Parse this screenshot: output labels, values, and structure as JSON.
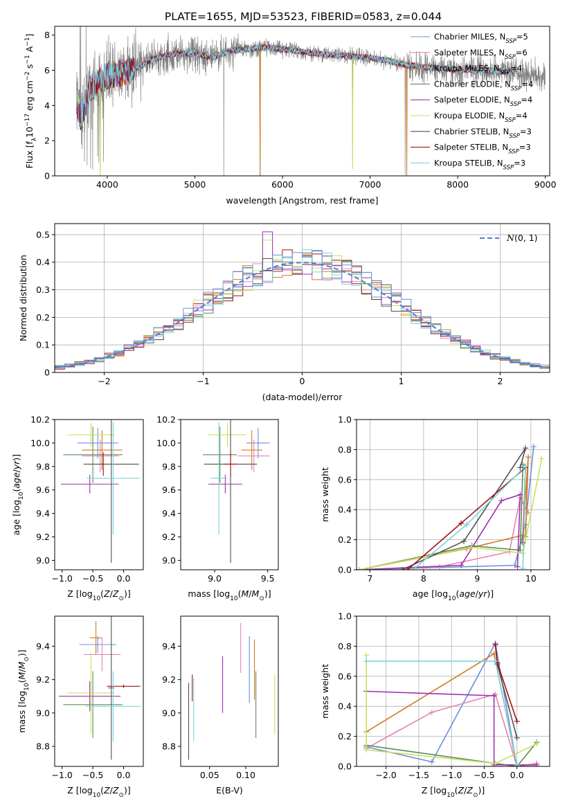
{
  "figure_title": "PLATE=1655, MJD=53523, FIBERID=0583, z=0.044",
  "legend_entries": [
    {
      "main": "Chabrier MILES, N",
      "sub": "SSP",
      "tail": "=5",
      "color": "#6a8fdc"
    },
    {
      "main": "Salpeter MILES, N",
      "sub": "SSP",
      "tail": "=6",
      "color": "#e483b8"
    },
    {
      "main": "Kroupa MILES, N",
      "sub": "SSP",
      "tail": "=4",
      "color": "#d07a1e"
    },
    {
      "main": "Chabrier ELODIE, N",
      "sub": "SSP",
      "tail": "=4",
      "color": "#5b8a58"
    },
    {
      "main": "Salpeter ELODIE, N",
      "sub": "SSP",
      "tail": "=4",
      "color": "#9b30b0"
    },
    {
      "main": "Kroupa ELODIE, N",
      "sub": "SSP",
      "tail": "=4",
      "color": "#c8e05a"
    },
    {
      "main": "Chabrier STELIB, N",
      "sub": "SSP",
      "tail": "=3",
      "color": "#505050"
    },
    {
      "main": "Salpeter STELIB, N",
      "sub": "SSP",
      "tail": "=3",
      "color": "#a01010"
    },
    {
      "main": "Kroupa STELIB, N",
      "sub": "SSP",
      "tail": "=3",
      "color": "#7ad4dc"
    }
  ],
  "chart_data": [
    {
      "id": "spectrum",
      "type": "line",
      "xlabel": "wavelength [Angstrom, rest frame]",
      "ylabel": "Flux [f_λ10^-17 erg cm^-2 s^-1 A^-1]",
      "xlim": [
        3400,
        9050
      ],
      "ylim": [
        0,
        8.5
      ],
      "xticks": [
        4000,
        5000,
        6000,
        7000,
        8000,
        9000
      ],
      "yticks": [
        0,
        2,
        4,
        6,
        8
      ],
      "data_color": "#808080",
      "x_range": [
        3650,
        9000
      ],
      "model_range": [
        3650,
        8650
      ],
      "continuum": [
        [
          3650,
          4.2
        ],
        [
          3700,
          3.3
        ],
        [
          3800,
          4.9
        ],
        [
          3900,
          5.3
        ],
        [
          4000,
          5.7
        ],
        [
          4100,
          5.8
        ],
        [
          4300,
          6.0
        ],
        [
          4500,
          6.6
        ],
        [
          4700,
          6.9
        ],
        [
          5000,
          7.0
        ],
        [
          5200,
          6.7
        ],
        [
          5400,
          7.1
        ],
        [
          5600,
          7.2
        ],
        [
          5800,
          7.3
        ],
        [
          6000,
          7.2
        ],
        [
          6300,
          7.0
        ],
        [
          6600,
          6.85
        ],
        [
          6800,
          6.8
        ],
        [
          7000,
          6.7
        ],
        [
          7200,
          6.55
        ],
        [
          7400,
          6.3
        ],
        [
          7600,
          6.2
        ],
        [
          7800,
          6.1
        ],
        [
          8000,
          6.05
        ],
        [
          8300,
          6.0
        ],
        [
          8650,
          5.9
        ],
        [
          9000,
          5.6
        ]
      ],
      "dips": [
        [
          3920,
          0.0
        ],
        [
          5330,
          0.0
        ],
        [
          5745,
          0.0
        ],
        [
          6800,
          0.4
        ],
        [
          7400,
          0.05
        ],
        [
          7420,
          0.3
        ]
      ]
    },
    {
      "id": "residuals",
      "type": "step",
      "xlabel": "(data-model)/error",
      "ylabel": "Normed distribution",
      "xlim": [
        -2.5,
        2.5
      ],
      "ylim": [
        0,
        0.54
      ],
      "xticks": [
        -2,
        -1,
        0,
        1,
        2
      ],
      "yticks": [
        0,
        0.1,
        0.2,
        0.3,
        0.4,
        0.5
      ],
      "grid": true,
      "legend": "N(0,1)",
      "legend_placement": "top-right",
      "gaussian_color": "#5a82d2",
      "bin_width": 0.1,
      "bins_start": -2.5
    },
    {
      "id": "z-age",
      "type": "errorbar",
      "xlabel": "Z [log10(Z/Z⊙)]",
      "ylabel": "age  [log10(age/yr)]",
      "xlim": [
        -1.12,
        0.32
      ],
      "ylim": [
        8.92,
        10.2
      ],
      "xticks": [
        -1.0,
        -0.5,
        0.0
      ],
      "yticks": [
        9.0,
        9.2,
        9.4,
        9.6,
        9.8,
        10.0,
        10.2
      ],
      "points": [
        {
          "x": -0.42,
          "xerr": 0.33,
          "y": 10.0,
          "yerr": 0.13
        },
        {
          "x": -0.38,
          "xerr": 0.3,
          "y": 9.89,
          "yerr": 0.14
        },
        {
          "x": -0.35,
          "xerr": 0.33,
          "y": 9.94,
          "yerr": 0.17
        },
        {
          "x": -0.5,
          "xerr": 0.48,
          "y": 9.9,
          "yerr": 0.24
        },
        {
          "x": -0.55,
          "xerr": 0.47,
          "y": 9.65,
          "yerr": 0.08
        },
        {
          "x": -0.53,
          "xerr": 0.38,
          "y": 10.07,
          "yerr": 0.1
        },
        {
          "x": -0.2,
          "xerr": 0.45,
          "y": 9.82,
          "yerr": 0.84
        },
        {
          "x": -0.33,
          "xerr": 0.02,
          "y": 9.82,
          "yerr": 0.1
        },
        {
          "x": -0.17,
          "xerr": 0.43,
          "y": 9.7,
          "yerr": 0.48
        }
      ]
    },
    {
      "id": "mass-age",
      "type": "errorbar",
      "xlabel": "mass [log10(M/M⊙)]",
      "ylabel": "",
      "xlim": [
        8.68,
        9.6
      ],
      "ylim": [
        8.92,
        10.2
      ],
      "xticks": [
        9.0,
        9.5
      ],
      "yticks": [
        9.0,
        9.2,
        9.4,
        9.6,
        9.8,
        10.0,
        10.2
      ],
      "points": [
        {
          "x": 9.41,
          "xerr": 0.11,
          "y": 10.0,
          "yerr": 0.13
        },
        {
          "x": 9.37,
          "xerr": 0.15,
          "y": 9.89,
          "yerr": 0.14
        },
        {
          "x": 9.35,
          "xerr": 0.1,
          "y": 9.94,
          "yerr": 0.17
        },
        {
          "x": 9.05,
          "xerr": 0.16,
          "y": 9.9,
          "yerr": 0.24
        },
        {
          "x": 9.1,
          "xerr": 0.16,
          "y": 9.65,
          "yerr": 0.08
        },
        {
          "x": 9.12,
          "xerr": 0.18,
          "y": 10.07,
          "yerr": 0.1
        },
        {
          "x": 9.15,
          "xerr": 0.25,
          "y": 9.82,
          "yerr": 0.84
        },
        {
          "x": 9.15,
          "xerr": 0.06,
          "y": 9.82,
          "yerr": 0.11
        },
        {
          "x": 9.04,
          "xerr": 0.08,
          "y": 9.7,
          "yerr": 0.48
        }
      ]
    },
    {
      "id": "age-massweight",
      "type": "line",
      "xlabel": "age  [log10(age/yr)]",
      "ylabel": "mass weight",
      "xlim": [
        6.75,
        10.35
      ],
      "ylim": [
        0,
        1.0
      ],
      "xticks": [
        7,
        8,
        9,
        10
      ],
      "yticks": [
        0.0,
        0.2,
        0.4,
        0.6,
        0.8,
        1.0
      ],
      "grid": true,
      "series": [
        {
          "x": [
            6.8,
            9.7,
            9.9,
            10.05
          ],
          "y": [
            0.0,
            0.03,
            0.3,
            0.82
          ]
        },
        {
          "x": [
            6.8,
            8.3,
            9.6,
            9.8,
            9.95
          ],
          "y": [
            0.0,
            0.02,
            0.12,
            0.48,
            0.38
          ]
        },
        {
          "x": [
            6.8,
            8.8,
            9.85,
            9.95,
            9.9
          ],
          "y": [
            0.0,
            0.14,
            0.23,
            0.75,
            0.22
          ]
        },
        {
          "x": [
            6.8,
            8.9,
            9.8,
            9.85
          ],
          "y": [
            0.0,
            0.16,
            0.13,
            0.7
          ]
        },
        {
          "x": [
            6.8,
            8.7,
            9.45,
            9.8,
            9.75
          ],
          "y": [
            0.0,
            0.03,
            0.46,
            0.5,
            0.02
          ]
        },
        {
          "x": [
            6.8,
            8.9,
            9.85,
            10.2
          ],
          "y": [
            0.0,
            0.15,
            0.11,
            0.74
          ]
        },
        {
          "x": [
            7.6,
            8.75,
            9.9,
            9.8
          ],
          "y": [
            0.0,
            0.19,
            0.81,
            0.68
          ]
        },
        {
          "x": [
            7.7,
            8.7,
            9.9,
            9.85
          ],
          "y": [
            0.0,
            0.31,
            0.68,
            0.18
          ]
        },
        {
          "x": [
            7.8,
            8.8,
            9.9,
            9.85
          ],
          "y": [
            0.0,
            0.3,
            0.69,
            0.01
          ]
        }
      ]
    },
    {
      "id": "z-mass",
      "type": "errorbar",
      "xlabel": "Z [log10(Z/Z⊙)]",
      "ylabel": "mass [log10(M/M⊙)]",
      "xlim": [
        -1.12,
        0.32
      ],
      "ylim": [
        8.68,
        9.58
      ],
      "xticks": [
        -1.0,
        -0.5,
        0.0
      ],
      "yticks": [
        8.8,
        9.0,
        9.2,
        9.4
      ],
      "points": [
        {
          "x": -0.42,
          "xerr": 0.3,
          "y": 9.41,
          "yerr": 0.05
        },
        {
          "x": -0.35,
          "xerr": 0.3,
          "y": 9.35,
          "yerr": 0.1
        },
        {
          "x": -0.45,
          "xerr": 0.1,
          "y": 9.45,
          "yerr": 0.1
        },
        {
          "x": -0.5,
          "xerr": 0.48,
          "y": 9.05,
          "yerr": 0.2
        },
        {
          "x": -0.55,
          "xerr": 0.5,
          "y": 9.1,
          "yerr": 0.09
        },
        {
          "x": -0.53,
          "xerr": 0.38,
          "y": 9.12,
          "yerr": 0.24
        },
        {
          "x": -0.2,
          "xerr": 0.05,
          "y": 9.15,
          "yerr": 0.43
        },
        {
          "x": 0.0,
          "xerr": 0.27,
          "y": 9.16,
          "yerr": 0.01
        },
        {
          "x": -0.17,
          "xerr": 0.45,
          "y": 9.04,
          "yerr": 0.21
        }
      ]
    },
    {
      "id": "ebv-mass",
      "type": "errorbar",
      "xlabel": "E(B-V)",
      "ylabel": "",
      "xlim": [
        0.01,
        0.145
      ],
      "ylim": [
        8.68,
        9.58
      ],
      "xticks": [
        0.05,
        0.1
      ],
      "yticks": [
        8.8,
        9.0,
        9.2,
        9.4
      ],
      "points": [
        {
          "x": 0.105,
          "xerr": 0,
          "y": 9.26,
          "yerr": 0.2
        },
        {
          "x": 0.093,
          "xerr": 0,
          "y": 9.39,
          "yerr": 0.15
        },
        {
          "x": 0.112,
          "xerr": 0,
          "y": 9.26,
          "yerr": 0.18
        },
        {
          "x": 0.114,
          "xerr": 0,
          "y": 9.05,
          "yerr": 0.2
        },
        {
          "x": 0.068,
          "xerr": 0,
          "y": 9.17,
          "yerr": 0.17
        },
        {
          "x": 0.14,
          "xerr": 0,
          "y": 9.05,
          "yerr": 0.18
        },
        {
          "x": 0.021,
          "xerr": 0,
          "y": 8.95,
          "yerr": 0.23
        },
        {
          "x": 0.026,
          "xerr": 0,
          "y": 9.15,
          "yerr": 0.08
        },
        {
          "x": 0.028,
          "xerr": 0,
          "y": 9.02,
          "yerr": 0.19
        }
      ]
    },
    {
      "id": "z-massweight",
      "type": "line",
      "xlabel": "Z [log10(Z/Z⊙)]",
      "ylabel": "mass weight",
      "xlim": [
        -2.45,
        0.5
      ],
      "ylim": [
        0,
        1.0
      ],
      "xticks": [
        -2.0,
        -1.5,
        -1.0,
        -0.5,
        0.0
      ],
      "yticks": [
        0.0,
        0.2,
        0.4,
        0.6,
        0.8,
        1.0
      ],
      "grid": true,
      "series": [
        {
          "x": [
            -2.3,
            -1.3,
            -0.33,
            0.0
          ],
          "y": [
            0.13,
            0.03,
            0.82,
            0.0
          ]
        },
        {
          "x": [
            -2.3,
            -1.3,
            -0.33,
            0.0,
            0.3
          ],
          "y": [
            0.12,
            0.36,
            0.48,
            0.0,
            0.02
          ]
        },
        {
          "x": [
            -2.3,
            -0.35,
            0.0,
            0.3
          ],
          "y": [
            0.23,
            0.75,
            0.0,
            0.0
          ]
        },
        {
          "x": [
            -2.3,
            -0.33,
            0.0,
            0.3
          ],
          "y": [
            0.14,
            0.02,
            0.0,
            0.16
          ]
        },
        {
          "x": [
            -2.3,
            -0.35,
            -0.35,
            0.3
          ],
          "y": [
            0.5,
            0.47,
            0.01,
            0.01
          ]
        },
        {
          "x": [
            -2.3,
            -2.3,
            -0.33,
            0.3
          ],
          "y": [
            0.74,
            0.11,
            0.02,
            0.15
          ]
        },
        {
          "x": [
            -0.33,
            -0.3,
            0.0
          ],
          "y": [
            0.81,
            0.68,
            0.19
          ]
        },
        {
          "x": [
            -0.33,
            -0.3,
            0.0
          ],
          "y": [
            0.81,
            0.69,
            0.3
          ]
        },
        {
          "x": [
            -2.3,
            -0.33,
            0.0
          ],
          "y": [
            0.7,
            0.7,
            0.01
          ]
        }
      ]
    }
  ]
}
